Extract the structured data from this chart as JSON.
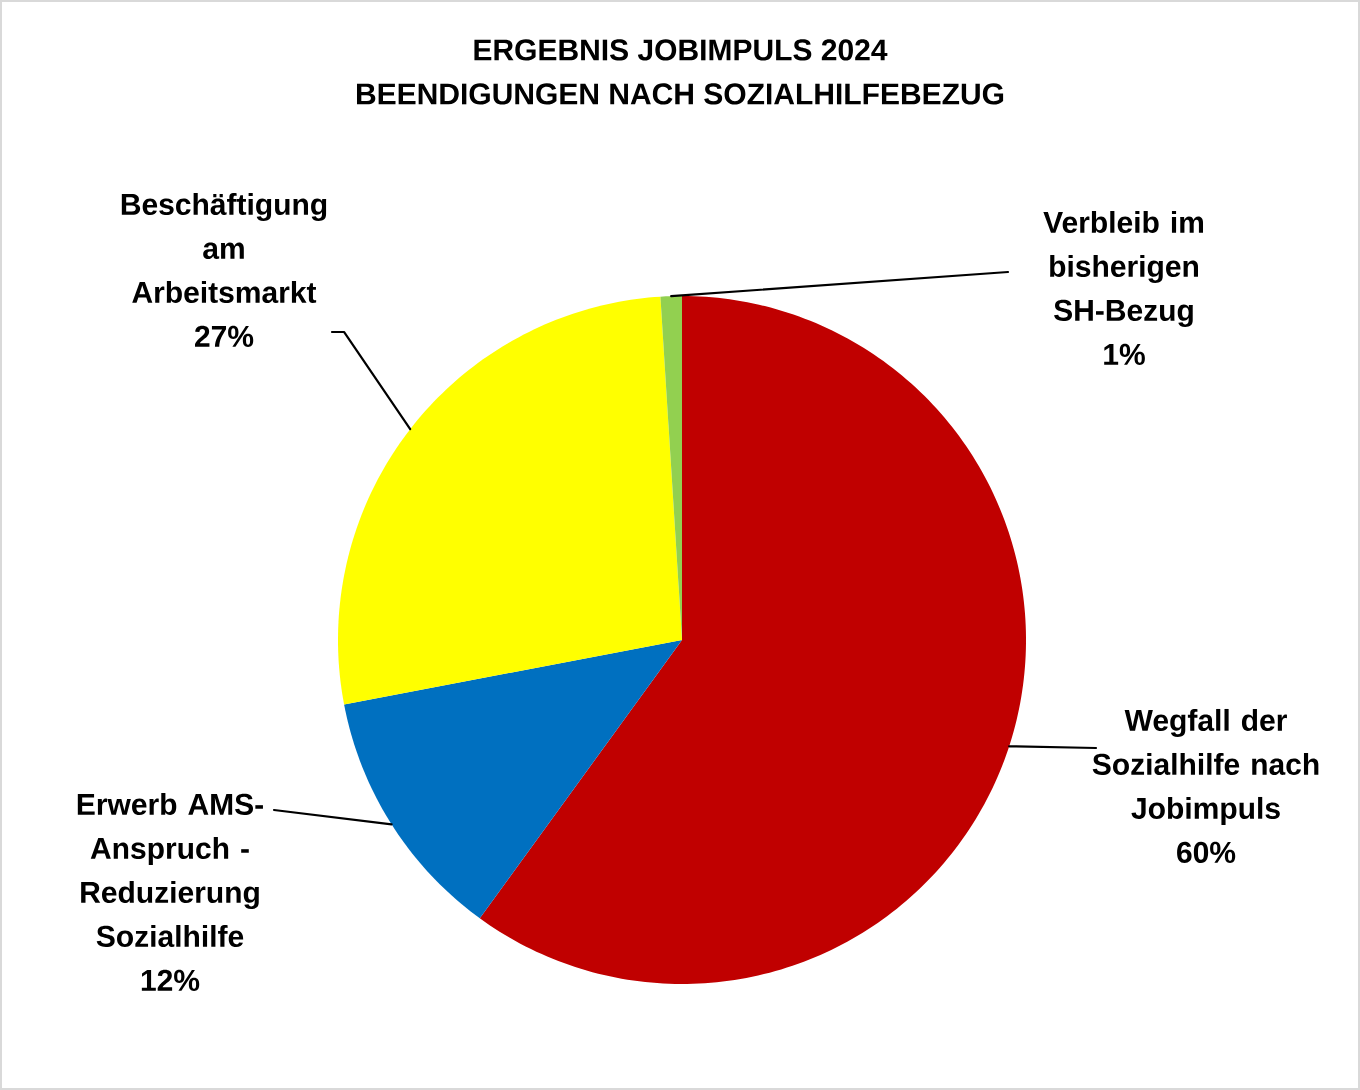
{
  "chart_data": {
    "type": "pie",
    "title": "ERGEBNIS JOBIMPULS 2024",
    "subtitle": "BEENDIGUNGEN NACH SOZIALHILFEBEZUG",
    "categories": [
      "Wegfall der Sozialhilfe nach Jobimpuls",
      "Erwerb AMS-Anspruch - Reduzierung Sozialhilfe",
      "Beschäftigung am Arbeitsmarkt",
      "Verbleib im bisherigen SH-Bezug"
    ],
    "values": [
      60,
      12,
      27,
      1
    ],
    "colors": [
      "#c00000",
      "#0070c0",
      "#ffff00",
      "#92d050"
    ],
    "value_labels": [
      "60%",
      "12%",
      "27%",
      "1%"
    ]
  }
}
